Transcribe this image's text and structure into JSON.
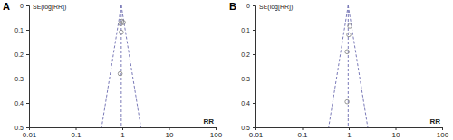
{
  "chart_data": [
    {
      "type": "scatter",
      "title": "A",
      "x_label": "RR",
      "y_label": "SE(log[RR])",
      "x": [
        0.97,
        1.05,
        0.92,
        0.95,
        0.9
      ],
      "y": [
        0.065,
        0.07,
        0.075,
        0.11,
        0.28
      ],
      "xlim": [
        0.01,
        100
      ],
      "xticks": [
        0.01,
        0.1,
        1,
        10,
        100
      ],
      "ylim": [
        0,
        0.5
      ],
      "yticks": [
        0,
        0.1,
        0.2,
        0.3,
        0.4,
        0.5
      ],
      "log": "x",
      "marker": "circle",
      "color": "#8a8a8a",
      "funnel": {
        "center": 0.95,
        "lower": 0.36,
        "upper": 2.5,
        "line_style": "dashed",
        "color": "#7a7ab8"
      }
    },
    {
      "type": "scatter",
      "title": "B",
      "x_label": "RR",
      "y_label": "SE(log[RR])",
      "x": [
        1.05,
        1.0,
        0.92,
        0.92
      ],
      "y": [
        0.085,
        0.12,
        0.19,
        0.395
      ],
      "xlim": [
        0.01,
        100
      ],
      "xticks": [
        0.01,
        0.1,
        1,
        10,
        100
      ],
      "ylim": [
        0,
        0.5
      ],
      "yticks": [
        0,
        0.1,
        0.2,
        0.3,
        0.4,
        0.5
      ],
      "log": "x",
      "marker": "circle",
      "color": "#8a8a8a",
      "funnel": {
        "center": 0.97,
        "lower": 0.37,
        "upper": 2.55,
        "line_style": "dashed",
        "color": "#7a7ab8"
      }
    }
  ]
}
